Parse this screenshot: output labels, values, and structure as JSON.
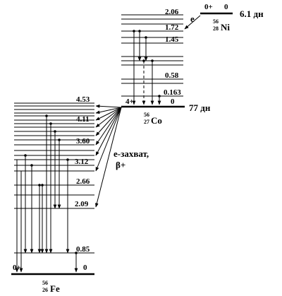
{
  "ni": {
    "spin": "0+",
    "energy": "0",
    "halflife": "6.1 дн",
    "mass": "56",
    "z": "28",
    "symbol": "Ni",
    "decay_mode": "e"
  },
  "co": {
    "spin": "4+",
    "energy": "0",
    "halflife": "77 дн",
    "mass": "56",
    "z": "27",
    "symbol": "Co",
    "levels": [
      "2.06",
      "1.72",
      "1.45",
      "0.58",
      "0.163"
    ]
  },
  "fe": {
    "spin": "0+",
    "energy": "0",
    "mass": "56",
    "z": "26",
    "symbol": "Fe",
    "levels": [
      "4.53",
      "4.11",
      "3.60",
      "3.12",
      "2.66",
      "2.09",
      "0.85"
    ]
  },
  "decay": {
    "line1": "е-захват,",
    "line2": "β+"
  }
}
